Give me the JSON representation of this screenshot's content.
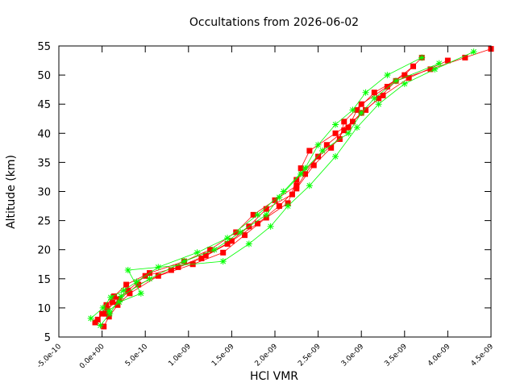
{
  "colors": {
    "red_series": "#ff0000",
    "green_series": "#00ff00",
    "axis": "#000000",
    "background": "#ffffff"
  },
  "chart_data": {
    "type": "scatter",
    "title": "Occultations from 2026-06-02",
    "xlabel": "HCl VMR",
    "ylabel": "Altitude (km)",
    "xlim": [
      -5e-10,
      4.5e-09
    ],
    "ylim": [
      5,
      55
    ],
    "x_ticks": [
      "-5.0e-10",
      "0.0e+00",
      "5.0e-10",
      "1.0e-09",
      "1.5e-09",
      "2.0e-09",
      "2.5e-09",
      "3.0e-09",
      "3.5e-09",
      "4.0e-09",
      "4.5e-09"
    ],
    "y_ticks": [
      "5",
      "10",
      "15",
      "20",
      "25",
      "30",
      "35",
      "40",
      "45",
      "50",
      "55"
    ],
    "grid": false,
    "legend": "none",
    "series": [
      {
        "marker": "square",
        "color": "#ff0000",
        "profiles": [
          {
            "x": [
              -8e-11,
              0.0,
              5e-11,
              1.4e-10,
              2.8e-10,
              5.5e-10,
              9.5e-10,
              1.25e-09,
              1.55e-09,
              1.75e-09,
              2e-09,
              2.25e-09,
              2.3e-09,
              2.4e-09,
              2.7e-09,
              2.9e-09,
              3.05e-09,
              3.2e-09,
              3.4e-09,
              3.8e-09,
              4.2e-09,
              4.5e-09
            ],
            "y": [
              7.5,
              9,
              10.5,
              12,
              14,
              16,
              18,
              20,
              23,
              26,
              28.5,
              31,
              34,
              37,
              40,
              42,
              44,
              46,
              49,
              51,
              53,
              54.5
            ]
          },
          {
            "x": [
              2e-11,
              8e-11,
              1.8e-10,
              3.2e-10,
              6.5e-10,
              1.05e-09,
              1.4e-09,
              1.65e-09,
              1.9e-09,
              2.15e-09,
              2.25e-09,
              2.5e-09,
              2.75e-09,
              2.8e-09,
              3e-09,
              3.3e-09,
              3.6e-09
            ],
            "y": [
              6.8,
              8.5,
              10.5,
              12.5,
              15.5,
              17.5,
              19.5,
              22.5,
              25.5,
              28,
              32,
              36,
              39,
              42,
              45,
              48,
              51.5
            ]
          },
          {
            "x": [
              -5e-11,
              6e-11,
              2e-10,
              4.2e-10,
              8e-10,
              1.15e-09,
              1.45e-09,
              1.7e-09,
              1.9e-09,
              2.2e-09,
              2.35e-09,
              2.6e-09,
              2.85e-09,
              2.95e-09,
              3.15e-09,
              3.5e-09,
              3.7e-09
            ],
            "y": [
              8.0,
              9.8,
              11.5,
              14.0,
              16.5,
              18.5,
              21.0,
              24.0,
              27.0,
              29.5,
              33.0,
              38.0,
              41.0,
              44.0,
              47.0,
              50.0,
              53.0
            ]
          },
          {
            "x": [
              4e-11,
              1.2e-10,
              3e-10,
              5e-10,
              8.8e-10,
              1.2e-09,
              1.5e-09,
              1.8e-09,
              2.05e-09,
              2.25e-09,
              2.45e-09,
              2.65e-09,
              2.8e-09,
              3e-09,
              3.25e-09,
              3.55e-09,
              4e-09
            ],
            "y": [
              9.0,
              11.0,
              13.0,
              15.5,
              17.0,
              19.0,
              21.5,
              24.5,
              27.5,
              30.5,
              34.5,
              37.5,
              40.5,
              43.5,
              46.5,
              49.5,
              52.5
            ]
          }
        ]
      },
      {
        "marker": "cross",
        "color": "#00ff00",
        "profiles": [
          {
            "x": [
              -1.3e-10,
              1e-11,
              1e-10,
              2.5e-10,
              4e-10,
              6.5e-10,
              1.1e-09,
              1.45e-09,
              1.8e-09,
              2.1e-09,
              2.35e-09,
              2.5e-09,
              2.7e-09,
              2.9e-09,
              3.05e-09,
              3.3e-09,
              3.7e-09
            ],
            "y": [
              8.2,
              10,
              11.8,
              13,
              14.5,
              17,
              19.5,
              22,
              26,
              30,
              34,
              38,
              41.5,
              44,
              47,
              50,
              53
            ]
          },
          {
            "x": [
              8e-11,
              2e-10,
              4.5e-10,
              3e-10,
              1.4e-09,
              1.7e-09,
              1.95e-09,
              2.15e-09,
              2.4e-09,
              2.7e-09,
              2.95e-09,
              3.2e-09,
              3.5e-09,
              3.85e-09,
              4.3e-09
            ],
            "y": [
              9.5,
              11,
              12.5,
              16.5,
              18,
              21,
              24,
              27.5,
              31,
              36,
              41,
              45,
              48.5,
              51,
              54
            ]
          },
          {
            "x": [
              -2e-11,
              9e-11,
              2.2e-10,
              5.5e-10,
              9.5e-10,
              1.3e-09,
              1.6e-09,
              1.9e-09,
              2.05e-09,
              2.3e-09,
              2.55e-09,
              2.85e-09,
              3e-09,
              3.15e-09,
              3.4e-09,
              3.9e-09
            ],
            "y": [
              7.0,
              9.0,
              12.0,
              15.0,
              18.0,
              20.0,
              23.0,
              26.0,
              29.0,
              33.0,
              37.0,
              40.0,
              43.5,
              46.0,
              49.0,
              52.0
            ]
          }
        ]
      }
    ]
  }
}
